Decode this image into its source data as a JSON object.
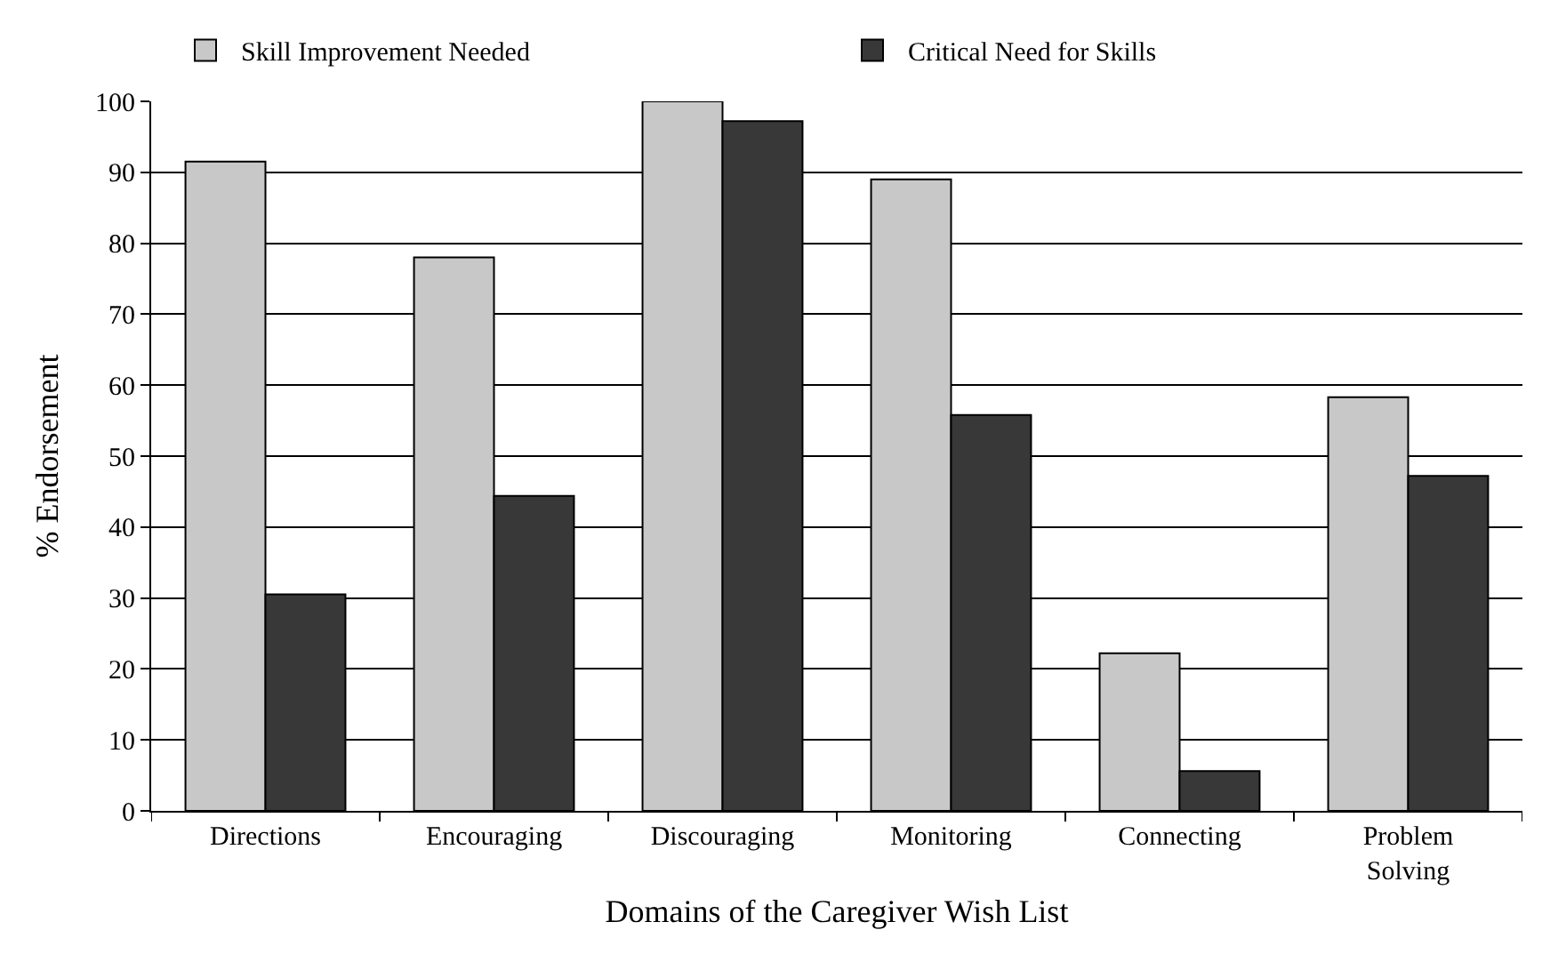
{
  "chart_data": {
    "type": "bar",
    "xlabel": "Domains of the Caregiver Wish List",
    "ylabel": "% Endorsement",
    "categories": [
      "Directions",
      "Encouraging",
      "Discouraging",
      "Monitoring",
      "Connecting",
      "Problem\nSolving"
    ],
    "series": [
      {
        "name": "Skill Improvement Needed",
        "color": "#c8c8c8",
        "values": [
          91.5,
          78,
          100,
          89,
          22.2,
          58.3
        ]
      },
      {
        "name": "Critical Need for Skills",
        "color": "#383838",
        "values": [
          30.5,
          44.4,
          97.2,
          55.8,
          5.6,
          47.2
        ]
      }
    ],
    "ylim": [
      0,
      100
    ],
    "yticks": [
      0,
      10,
      20,
      30,
      40,
      50,
      60,
      70,
      80,
      90,
      100
    ],
    "grid": "y",
    "legend": "top"
  }
}
